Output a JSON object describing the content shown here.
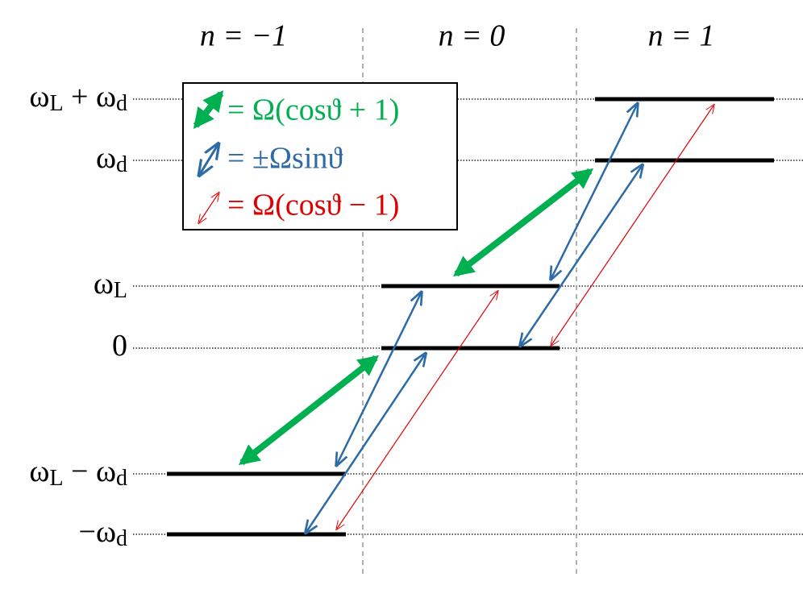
{
  "columns": [
    "n = −1",
    "n = 0",
    "n = 1"
  ],
  "levels": [
    {
      "label": [
        {
          "t": "ω"
        },
        {
          "t": "L",
          "sub": true
        },
        {
          "t": " + ω"
        },
        {
          "t": "d",
          "sub": true
        }
      ]
    },
    {
      "label": [
        {
          "t": "ω"
        },
        {
          "t": "d",
          "sub": true
        }
      ]
    },
    {
      "label": [
        {
          "t": "ω"
        },
        {
          "t": "L",
          "sub": true
        }
      ]
    },
    {
      "label": [
        {
          "t": "0"
        }
      ]
    },
    {
      "label": [
        {
          "t": "ω"
        },
        {
          "t": "L",
          "sub": true
        },
        {
          "t": " − ω"
        },
        {
          "t": "d",
          "sub": true
        }
      ]
    },
    {
      "label": [
        {
          "t": "−ω"
        },
        {
          "t": "d",
          "sub": true
        }
      ]
    }
  ],
  "legend": [
    "= Ω(cosϑ + 1)",
    "= ±Ωsinϑ",
    "= Ω(cosϑ − 1)"
  ]
}
